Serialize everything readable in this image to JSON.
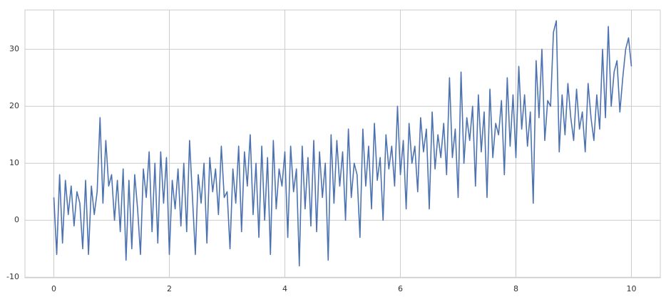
{
  "chart_data": {
    "type": "line",
    "x": [
      0,
      0.05,
      0.1,
      0.15,
      0.2,
      0.25,
      0.3,
      0.35,
      0.4,
      0.45,
      0.5,
      0.55,
      0.6,
      0.65,
      0.7,
      0.75,
      0.8,
      0.85,
      0.9,
      0.95,
      1,
      1.05,
      1.1,
      1.15,
      1.2,
      1.25,
      1.3,
      1.35,
      1.4,
      1.45,
      1.5,
      1.55,
      1.6,
      1.65,
      1.7,
      1.75,
      1.8,
      1.85,
      1.9,
      1.95,
      2,
      2.05,
      2.1,
      2.15,
      2.2,
      2.25,
      2.3,
      2.35,
      2.4,
      2.45,
      2.5,
      2.55,
      2.6,
      2.65,
      2.7,
      2.75,
      2.8,
      2.85,
      2.9,
      2.95,
      3,
      3.05,
      3.1,
      3.15,
      3.2,
      3.25,
      3.3,
      3.35,
      3.4,
      3.45,
      3.5,
      3.55,
      3.6,
      3.65,
      3.7,
      3.75,
      3.8,
      3.85,
      3.9,
      3.95,
      4,
      4.05,
      4.1,
      4.15,
      4.2,
      4.25,
      4.3,
      4.35,
      4.4,
      4.45,
      4.5,
      4.55,
      4.6,
      4.65,
      4.7,
      4.75,
      4.8,
      4.85,
      4.9,
      4.95,
      5,
      5.05,
      5.1,
      5.15,
      5.2,
      5.25,
      5.3,
      5.35,
      5.4,
      5.45,
      5.5,
      5.55,
      5.6,
      5.65,
      5.7,
      5.75,
      5.8,
      5.85,
      5.9,
      5.95,
      6,
      6.05,
      6.1,
      6.15,
      6.2,
      6.25,
      6.3,
      6.35,
      6.4,
      6.45,
      6.5,
      6.55,
      6.6,
      6.65,
      6.7,
      6.75,
      6.8,
      6.85,
      6.9,
      6.95,
      7,
      7.05,
      7.1,
      7.15,
      7.2,
      7.25,
      7.3,
      7.35,
      7.4,
      7.45,
      7.5,
      7.55,
      7.6,
      7.65,
      7.7,
      7.75,
      7.8,
      7.85,
      7.9,
      7.95,
      8,
      8.05,
      8.1,
      8.15,
      8.2,
      8.25,
      8.3,
      8.35,
      8.4,
      8.45,
      8.5,
      8.55,
      8.6,
      8.65,
      8.7,
      8.75,
      8.8,
      8.85,
      8.9,
      8.95,
      9,
      9.05,
      9.1,
      9.15,
      9.2,
      9.25,
      9.3,
      9.35,
      9.4,
      9.45,
      9.5,
      9.55,
      9.6,
      9.65,
      9.7,
      9.75,
      9.8,
      9.85,
      9.9,
      9.95,
      10
    ],
    "values": [
      4,
      -6,
      8,
      -4,
      7,
      1,
      6,
      -1,
      5,
      3,
      -5,
      7,
      -6,
      6,
      1,
      5,
      18,
      3,
      14,
      6,
      8,
      0,
      7,
      -2,
      9,
      -7,
      7,
      -5,
      8,
      2,
      -6,
      9,
      4,
      12,
      -2,
      10,
      -4,
      12,
      3,
      11,
      -6,
      7,
      2,
      9,
      -1,
      10,
      -2,
      14,
      4,
      -6,
      8,
      3,
      10,
      -4,
      11,
      5,
      9,
      1,
      13,
      4,
      5,
      -5,
      9,
      3,
      13,
      -2,
      12,
      6,
      15,
      1,
      10,
      -3,
      13,
      0,
      11,
      -6,
      14,
      2,
      9,
      6,
      12,
      -3,
      13,
      5,
      9,
      -8,
      13,
      2,
      11,
      -1,
      14,
      -2,
      12,
      4,
      10,
      -7,
      15,
      3,
      14,
      6,
      12,
      0,
      16,
      4,
      10,
      8,
      -3,
      16,
      6,
      13,
      2,
      17,
      7,
      11,
      0,
      15,
      9,
      13,
      6,
      20,
      8,
      14,
      2,
      17,
      10,
      13,
      5,
      18,
      12,
      16,
      2,
      19,
      9,
      15,
      11,
      17,
      8,
      25,
      11,
      16,
      4,
      26,
      10,
      18,
      14,
      20,
      6,
      22,
      12,
      19,
      4,
      23,
      11,
      17,
      15,
      21,
      8,
      25,
      13,
      22,
      11,
      27,
      16,
      22,
      13,
      19,
      3,
      28,
      18,
      30,
      14,
      21,
      20,
      33,
      35,
      12,
      22,
      15,
      24,
      18,
      14,
      23,
      16,
      19,
      12,
      24,
      18,
      14,
      22,
      16,
      30,
      18,
      34,
      20,
      26,
      28,
      19,
      25,
      30,
      32,
      27
    ],
    "color": "#4c72b0",
    "xlim": [
      -0.5,
      10.5
    ],
    "xticks": [
      0,
      2,
      4,
      6,
      8,
      10
    ],
    "ylim": [
      -10.1,
      36.9
    ],
    "yticks": [
      -10,
      0,
      10,
      20,
      30
    ],
    "grid": true
  }
}
